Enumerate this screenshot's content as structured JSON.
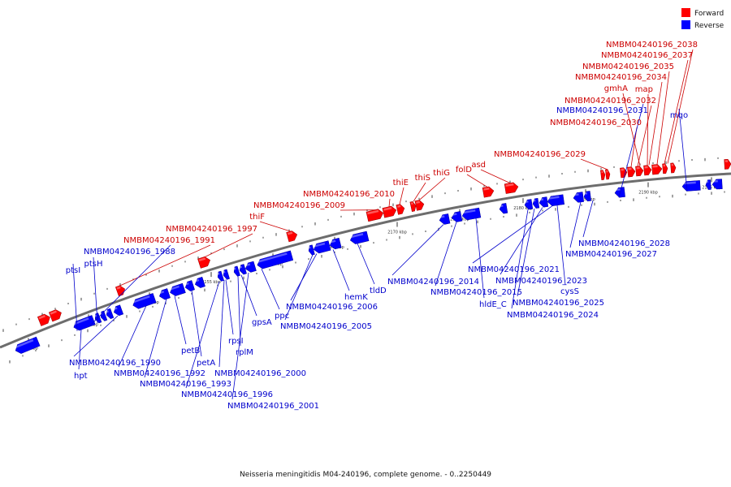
{
  "colors": {
    "forward": "#ff0000",
    "reverse": "#0000ff",
    "axis": "#777777",
    "text_forward": "#cc0000",
    "text_reverse": "#0000cc"
  },
  "legend": {
    "forward_label": "Forward",
    "reverse_label": "Reverse"
  },
  "caption": "Neisseria meningitidis M04-240196, complete genome. - 0..2250449",
  "scale_ticks": [
    "2140 kbp",
    "2145 kbp",
    "2150 kbp",
    "2155 kbp",
    "2160 kbp",
    "2165 kbp",
    "2170 kbp",
    "2175 kbp",
    "2180 kbp",
    "2185 kbp",
    "2190 kbp",
    "2195 kbp"
  ],
  "forward_labels": [
    "NMBM04240196_2038",
    "NMBM04240196_2037",
    "NMBM04240196_2035",
    "NMBM04240196_2034",
    "gmhA",
    "map",
    "NMBM04240196_2032",
    "NMBM04240196_2030",
    "NMBM04240196_2029",
    "folD",
    "asd",
    "thiG",
    "thiS",
    "thiE",
    "NMBM04240196_2010",
    "NMBM04240196_2009",
    "thiF",
    "NMBM04240196_1997",
    "NMBM04240196_1991"
  ],
  "reverse_labels": [
    "NMBM04240196_2031",
    "mqo",
    "NMBM04240196_1988",
    "ptsH",
    "ptsI",
    "NMBM04240196_2028",
    "NMBM04240196_2027",
    "NMBM04240196_2021",
    "NMBM04240196_2023",
    "cysS",
    "NMBM04240196_2025",
    "NMBM04240196_2024",
    "NMBM04240196_2014",
    "NMBM04240196_2015",
    "hldE_C",
    "tldD",
    "hemK",
    "NMBM04240196_2006",
    "ppc",
    "NMBM04240196_2005",
    "gpsA",
    "rplM",
    "rpsI",
    "NMBM04240196_2000",
    "NMBM04240196_1996",
    "NMBM04240196_2001",
    "petA",
    "petB",
    "NMBM04240196_1993",
    "NMBM04240196_1992",
    "NMBM04240196_1990",
    "hpt"
  ]
}
